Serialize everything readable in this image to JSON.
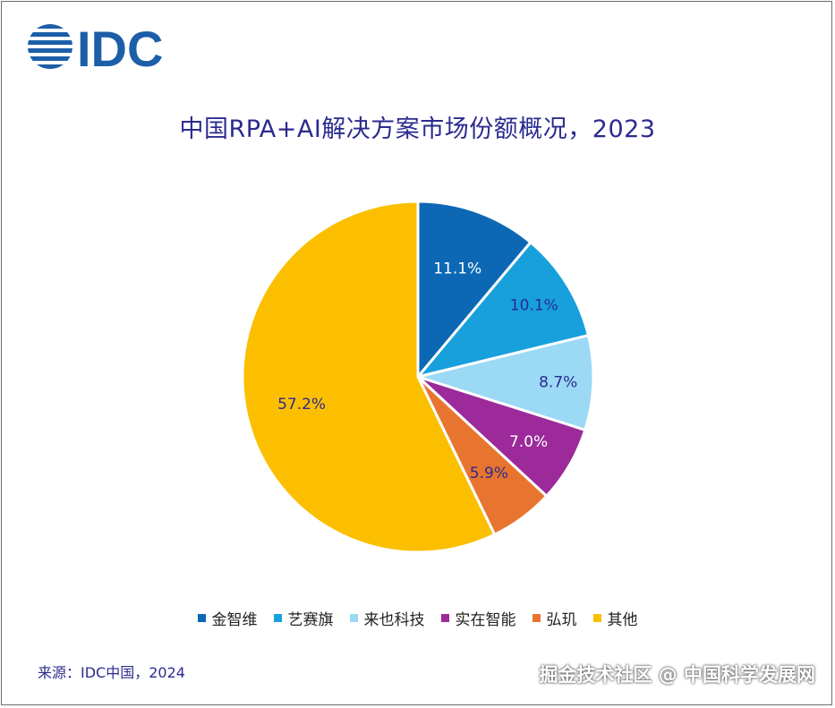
{
  "logo_text": "IDC",
  "source": "来源：IDC中国，2024",
  "watermark": "掘金技术社区 @ 中国科学发展网",
  "colors": {
    "brand": "#1d5ea8",
    "title": "#2b2b8f"
  },
  "chart_data": {
    "type": "pie",
    "title": "中国RPA+AI解决方案市场份额概况，2023",
    "start_angle_deg": 0,
    "direction": "clockwise",
    "legend_position": "bottom",
    "slices": [
      {
        "label": "金智维",
        "value": 11.1,
        "display": "11.1%",
        "color": "#0c68b5",
        "label_color": "#ffffff"
      },
      {
        "label": "艺赛旗",
        "value": 10.1,
        "display": "10.1%",
        "color": "#17a0dc",
        "label_color": "#2b2b8f"
      },
      {
        "label": "来也科技",
        "value": 8.7,
        "display": "8.7%",
        "color": "#9bd9f5",
        "label_color": "#2b2b8f"
      },
      {
        "label": "实在智能",
        "value": 7.0,
        "display": "7.0%",
        "color": "#9c2a9a",
        "label_color": "#ffffff"
      },
      {
        "label": "弘玑",
        "value": 5.9,
        "display": "5.9%",
        "color": "#e8752f",
        "label_color": "#2b2b8f"
      },
      {
        "label": "其他",
        "value": 57.2,
        "display": "57.2%",
        "color": "#fcbf00",
        "label_color": "#2b2b8f"
      }
    ]
  }
}
